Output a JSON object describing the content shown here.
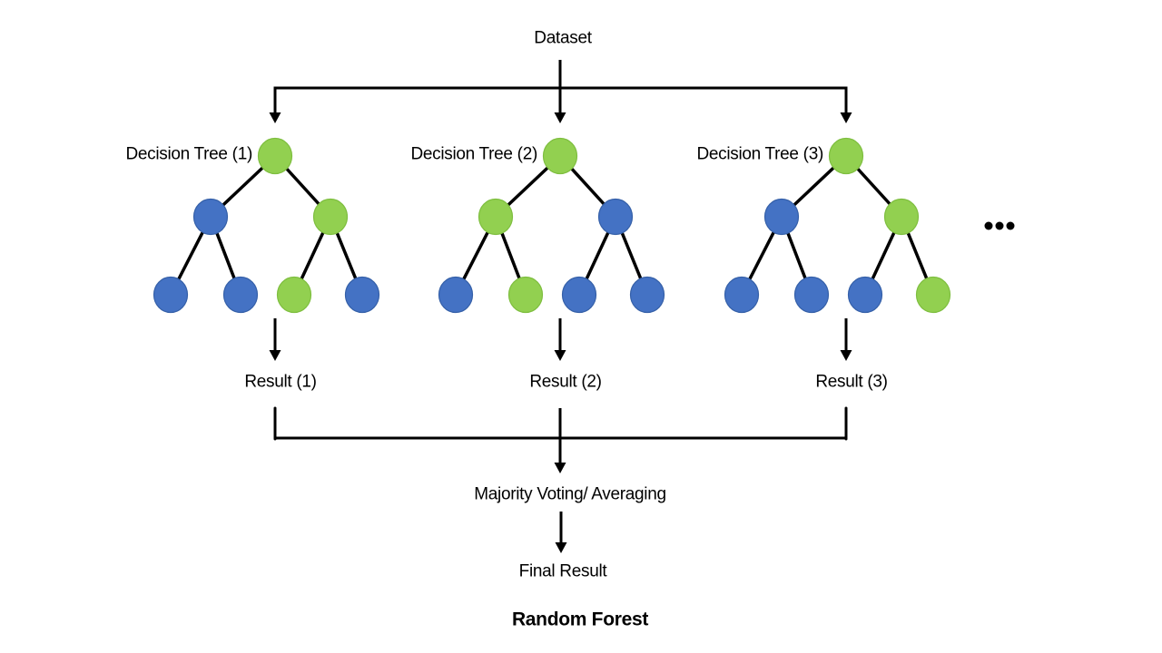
{
  "colors": {
    "background": "#FFFFFF",
    "line": "#000000",
    "text": "#000000",
    "node_green": "#92D050",
    "node_green_border": "#7EBE3F",
    "node_blue": "#4472C4",
    "node_blue_border": "#3560A8"
  },
  "labels": {
    "dataset": "Dataset",
    "majority_voting": "Majority Voting/ Averaging",
    "final_result": "Final Result",
    "title": "Random Forest"
  },
  "icons": {
    "ellipsis": "..."
  },
  "trees": [
    {
      "label": "Decision Tree (1)",
      "result": "Result (1)",
      "nodes": {
        "root": "green",
        "children": [
          "blue",
          "green"
        ],
        "leaves": [
          "blue",
          "blue",
          "green",
          "blue"
        ]
      }
    },
    {
      "label": "Decision Tree (2)",
      "result": "Result (2)",
      "nodes": {
        "root": "green",
        "children": [
          "green",
          "blue"
        ],
        "leaves": [
          "blue",
          "green",
          "blue",
          "blue"
        ]
      }
    },
    {
      "label": "Decision Tree (3)",
      "result": "Result (3)",
      "nodes": {
        "root": "green",
        "children": [
          "blue",
          "green"
        ],
        "leaves": [
          "blue",
          "blue",
          "blue",
          "green"
        ]
      }
    }
  ]
}
